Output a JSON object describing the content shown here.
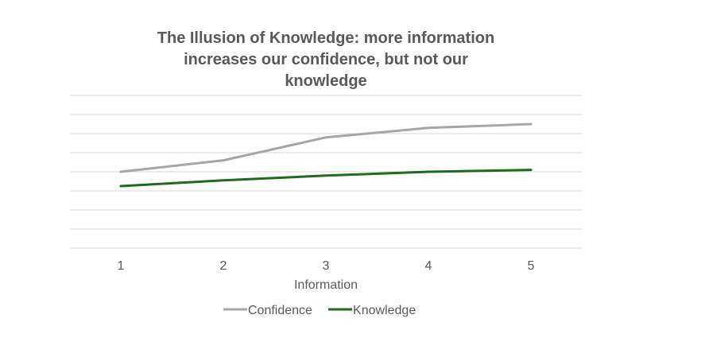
{
  "chart_data": {
    "type": "line",
    "title_lines": [
      "The Illusion of Knowledge: more information",
      "increases our confidence, but not our",
      "knowledge"
    ],
    "xlabel": "Information",
    "ylabel": "",
    "categories": [
      "1",
      "2",
      "3",
      "4",
      "5"
    ],
    "ylim": [
      0,
      8
    ],
    "y_tick_labels_shown": false,
    "grid": true,
    "legend_position": "bottom",
    "series": [
      {
        "name": "Confidence",
        "color": "#a6a6a6",
        "values": [
          4.0,
          4.6,
          5.8,
          6.3,
          6.5
        ]
      },
      {
        "name": "Knowledge",
        "color": "#1e6b1e",
        "values": [
          3.25,
          3.55,
          3.8,
          4.0,
          4.1
        ]
      }
    ]
  }
}
